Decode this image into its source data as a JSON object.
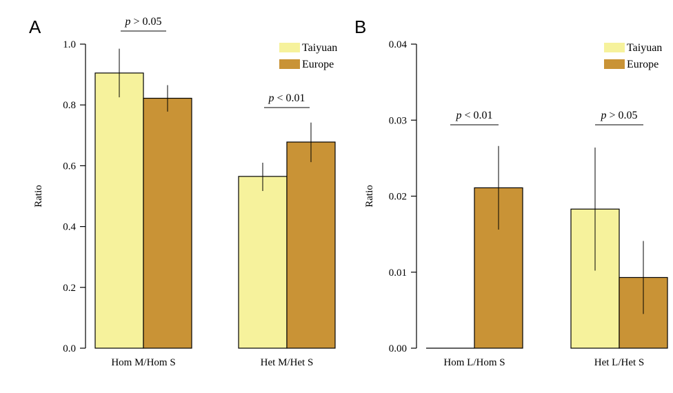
{
  "chart_data": [
    {
      "panel": "A",
      "type": "bar",
      "ylabel": "Ratio",
      "ylim": [
        0,
        1.0
      ],
      "yticks": [
        "0.0",
        "0.2",
        "0.4",
        "0.6",
        "0.8",
        "1.0"
      ],
      "categories": [
        "Hom M/Hom S",
        "Het M/Het S"
      ],
      "series": [
        {
          "name": "Taiyuan",
          "color": "#f6f29c",
          "values": [
            0.905,
            0.565
          ],
          "err_low": [
            0.825,
            0.517
          ],
          "err_high": [
            0.985,
            0.61
          ]
        },
        {
          "name": "Europe",
          "color": "#c99336",
          "values": [
            0.822,
            0.678
          ],
          "err_low": [
            0.778,
            0.612
          ],
          "err_high": [
            0.865,
            0.742
          ]
        }
      ],
      "annotations": [
        {
          "category_index": 0,
          "italic": "p",
          "rest": " > 0.05"
        },
        {
          "category_index": 1,
          "italic": "p",
          "rest": " < 0.01"
        }
      ],
      "legend_position": "top-right"
    },
    {
      "panel": "B",
      "type": "bar",
      "ylabel": "Ratio",
      "ylim": [
        0,
        0.04
      ],
      "yticks": [
        "0.00",
        "0.01",
        "0.02",
        "0.03",
        "0.04"
      ],
      "categories": [
        "Hom L/Hom S",
        "Het L/Het S"
      ],
      "series": [
        {
          "name": "Taiyuan",
          "color": "#f6f29c",
          "values": [
            0.0,
            0.0183
          ],
          "err_low": [
            0.0,
            0.0102
          ],
          "err_high": [
            0.0,
            0.0264
          ]
        },
        {
          "name": "Europe",
          "color": "#c99336",
          "values": [
            0.0211,
            0.0093
          ],
          "err_low": [
            0.0156,
            0.0045
          ],
          "err_high": [
            0.0266,
            0.0141
          ]
        }
      ],
      "annotations": [
        {
          "category_index": 0,
          "italic": "p",
          "rest": " < 0.01"
        },
        {
          "category_index": 1,
          "italic": "p",
          "rest": " > 0.05"
        }
      ],
      "legend_position": "top-right"
    }
  ]
}
